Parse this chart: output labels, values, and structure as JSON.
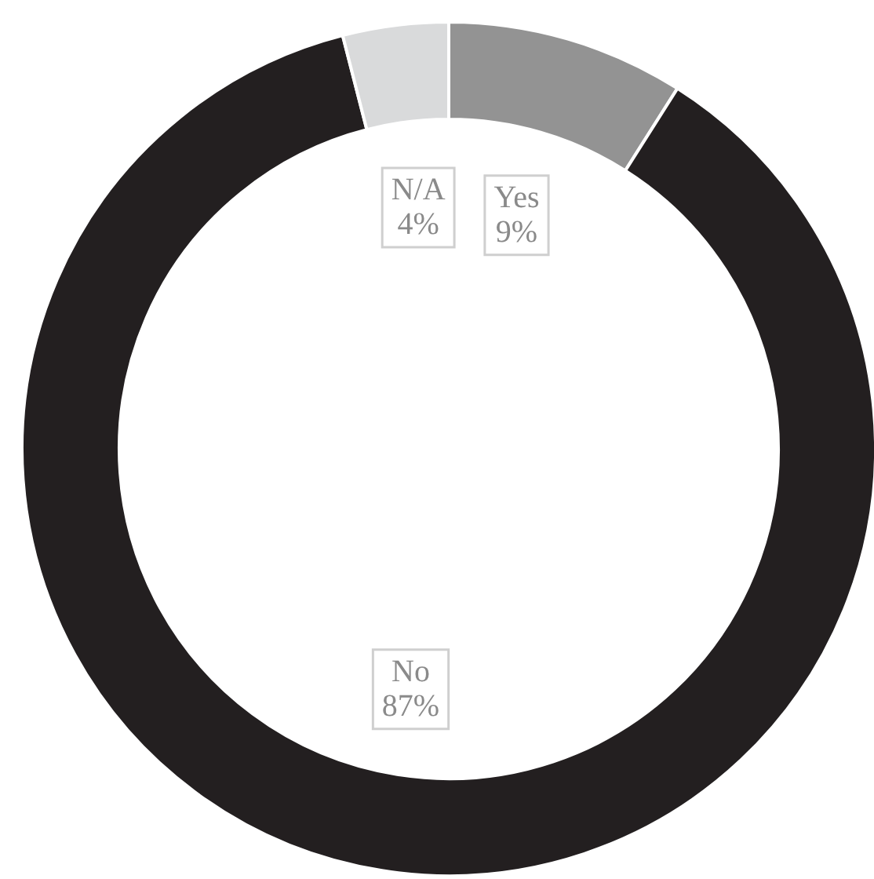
{
  "chart_data": {
    "type": "donut",
    "categories": [
      "Yes",
      "No",
      "N/A"
    ],
    "values": [
      9,
      87,
      4
    ],
    "colors": [
      "#939393",
      "#231f20",
      "#d9dadb"
    ],
    "value_labels": [
      "9%",
      "87%",
      "4%"
    ]
  }
}
